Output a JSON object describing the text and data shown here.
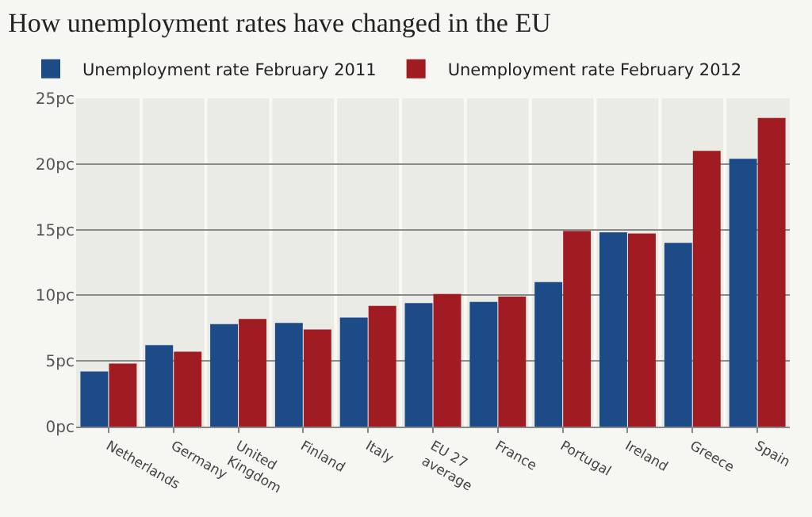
{
  "chart_data": {
    "type": "bar",
    "title": "How unemployment rates have changed in the EU",
    "categories": [
      "Netherlands",
      "Germany",
      "United Kingdom",
      "Finland",
      "Italy",
      "EU 27 average",
      "France",
      "Portugal",
      "Ireland",
      "Greece",
      "Spain"
    ],
    "series": [
      {
        "name": "Unemployment rate February 2011",
        "color": "#1c4b87",
        "values": [
          4.2,
          6.2,
          7.8,
          7.9,
          8.3,
          9.4,
          9.5,
          11.0,
          14.8,
          14.0,
          20.4
        ]
      },
      {
        "name": "Unemployment rate February 2012",
        "color": "#a11b22",
        "values": [
          4.8,
          5.7,
          8.2,
          7.4,
          9.2,
          10.1,
          9.9,
          14.9,
          14.7,
          21.0,
          23.5
        ]
      }
    ],
    "ylim": [
      0,
      25
    ],
    "yticks": [
      {
        "value": 0,
        "label": "0pc"
      },
      {
        "value": 5,
        "label": "5pc"
      },
      {
        "value": 10,
        "label": "10pc"
      },
      {
        "value": 15,
        "label": "15pc"
      },
      {
        "value": 20,
        "label": "20pc"
      },
      {
        "value": 25,
        "label": "25pc"
      }
    ],
    "grid": "y",
    "legend": "top left"
  }
}
